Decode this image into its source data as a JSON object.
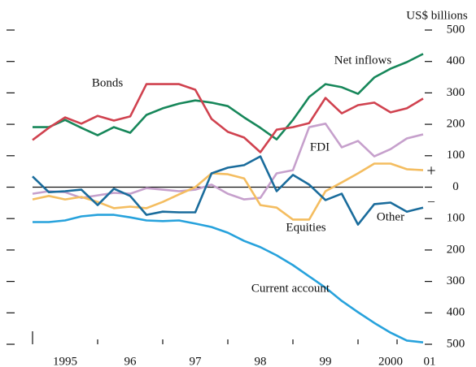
{
  "chart_data": {
    "type": "line",
    "unit_label": "US$ billions",
    "positive_sign": "+",
    "negative_sign": "–",
    "x": [
      1995,
      1995.25,
      1995.5,
      1995.75,
      1996,
      1996.25,
      1996.5,
      1996.75,
      1997,
      1997.25,
      1997.5,
      1997.75,
      1998,
      1998.25,
      1998.5,
      1998.75,
      1999,
      1999.25,
      1999.5,
      1999.75,
      2000,
      2000.25,
      2000.5,
      2000.75,
      2001
    ],
    "xlim": [
      1995,
      2001
    ],
    "xticks": [
      {
        "value": 1995.5,
        "label": "1995"
      },
      {
        "value": 1996.5,
        "label": "96"
      },
      {
        "value": 1997.5,
        "label": "97"
      },
      {
        "value": 1998.5,
        "label": "98"
      },
      {
        "value": 1999.5,
        "label": "99"
      },
      {
        "value": 2000.5,
        "label": "2000"
      },
      {
        "value": 2001.1,
        "label": "01"
      }
    ],
    "ylim": [
      -500,
      500
    ],
    "yticks": [
      500,
      400,
      300,
      200,
      100,
      0,
      {
        "value": -100,
        "label": "100"
      },
      {
        "value": -200,
        "label": "200"
      },
      {
        "value": -300,
        "label": "300"
      },
      {
        "value": -400,
        "label": "400"
      },
      {
        "value": -500,
        "label": "500"
      }
    ],
    "series": [
      {
        "name": "Net inflows",
        "color": "#17875a",
        "values": [
          191,
          191,
          214,
          189,
          165,
          191,
          173,
          230,
          251,
          266,
          276,
          269,
          258,
          222,
          189,
          152,
          214,
          287,
          328,
          318,
          297,
          349,
          377,
          398,
          424
        ]
      },
      {
        "name": "Bonds",
        "color": "#d0424f",
        "values": [
          150,
          189,
          222,
          202,
          227,
          212,
          225,
          328,
          328,
          328,
          310,
          217,
          176,
          158,
          111,
          183,
          191,
          204,
          284,
          235,
          261,
          269,
          238,
          251,
          282
        ]
      },
      {
        "name": "FDI",
        "color": "#c6a0cc",
        "values": [
          -21,
          -13,
          -16,
          -34,
          -26,
          -18,
          -21,
          -3,
          -8,
          -13,
          -8,
          8,
          -21,
          -39,
          -34,
          44,
          54,
          191,
          202,
          127,
          147,
          98,
          121,
          155,
          168
        ]
      },
      {
        "name": "Equities",
        "color": "#f4bd60",
        "values": [
          -39,
          -28,
          -39,
          -31,
          -47,
          -67,
          -62,
          -67,
          -47,
          -23,
          0,
          44,
          41,
          28,
          -57,
          -65,
          -103,
          -103,
          -13,
          15,
          44,
          75,
          75,
          57,
          54
        ]
      },
      {
        "name": "Other",
        "color": "#1a6c9c",
        "values": [
          34,
          -16,
          -13,
          -8,
          -57,
          -5,
          -28,
          -88,
          -78,
          -80,
          -80,
          44,
          62,
          70,
          98,
          -13,
          39,
          8,
          -41,
          -21,
          -119,
          -54,
          -49,
          -78,
          -65
        ]
      },
      {
        "name": "Current account",
        "color": "#27a2dc",
        "values": [
          -111,
          -111,
          -106,
          -93,
          -88,
          -88,
          -96,
          -106,
          -108,
          -106,
          -116,
          -127,
          -145,
          -171,
          -191,
          -217,
          -248,
          -284,
          -320,
          -362,
          -398,
          -432,
          -463,
          -488,
          -494
        ]
      }
    ]
  }
}
